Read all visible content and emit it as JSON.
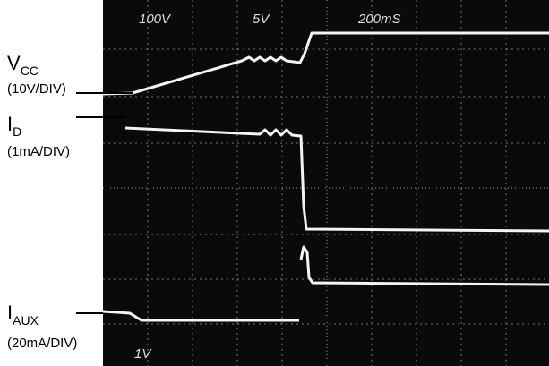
{
  "labels": [
    {
      "symbol": "V",
      "subscript": "CC",
      "scale": "(10V/DIV)"
    },
    {
      "symbol": "I",
      "subscript": "D",
      "scale": "(1mA/DIV)"
    },
    {
      "symbol": "I",
      "subscript": "AUX",
      "scale": "(20mA/DIV)"
    }
  ],
  "screen": {
    "top": [
      "100V",
      "5V",
      "200mS"
    ],
    "bottom": "1V"
  }
}
